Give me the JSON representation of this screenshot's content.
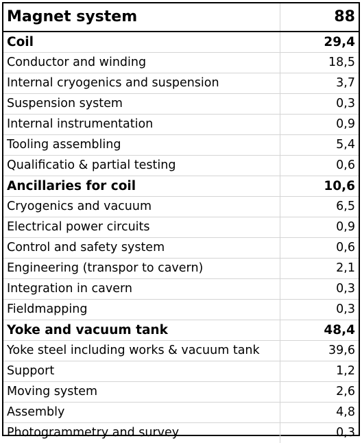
{
  "title": {
    "label": "Magnet system",
    "value": "88"
  },
  "sections": [
    {
      "label": "Coil",
      "value": "29,4",
      "items": [
        {
          "label": "Conductor and winding",
          "value": "18,5"
        },
        {
          "label": "Internal cryogenics and suspension",
          "value": "3,7"
        },
        {
          "label": "Suspension system",
          "value": "0,3"
        },
        {
          "label": "Internal instrumentation",
          "value": "0,9"
        },
        {
          "label": "Tooling assembling",
          "value": "5,4"
        },
        {
          "label": "Qualificatio & partial testing",
          "value": "0,6"
        }
      ]
    },
    {
      "label": "Ancillaries for coil",
      "value": "10,6",
      "items": [
        {
          "label": "Cryogenics and vacuum",
          "value": "6,5"
        },
        {
          "label": "Electrical power circuits",
          "value": "0,9"
        },
        {
          "label": "Control and safety system",
          "value": "0,6"
        },
        {
          "label": "Engineering (transpor to cavern)",
          "value": "2,1"
        },
        {
          "label": "Integration in cavern",
          "value": "0,3"
        },
        {
          "label": "Fieldmapping",
          "value": "0,3"
        }
      ]
    },
    {
      "label": "Yoke and vacuum tank",
      "value": "48,4",
      "items": [
        {
          "label": "Yoke steel including works & vacuum tank",
          "value": "39,6"
        },
        {
          "label": "Support",
          "value": "1,2"
        },
        {
          "label": "Moving system",
          "value": "2,6"
        },
        {
          "label": "Assembly",
          "value": "4,8"
        },
        {
          "label": "Photogrammetry and survey",
          "value": "0,3"
        }
      ]
    }
  ]
}
